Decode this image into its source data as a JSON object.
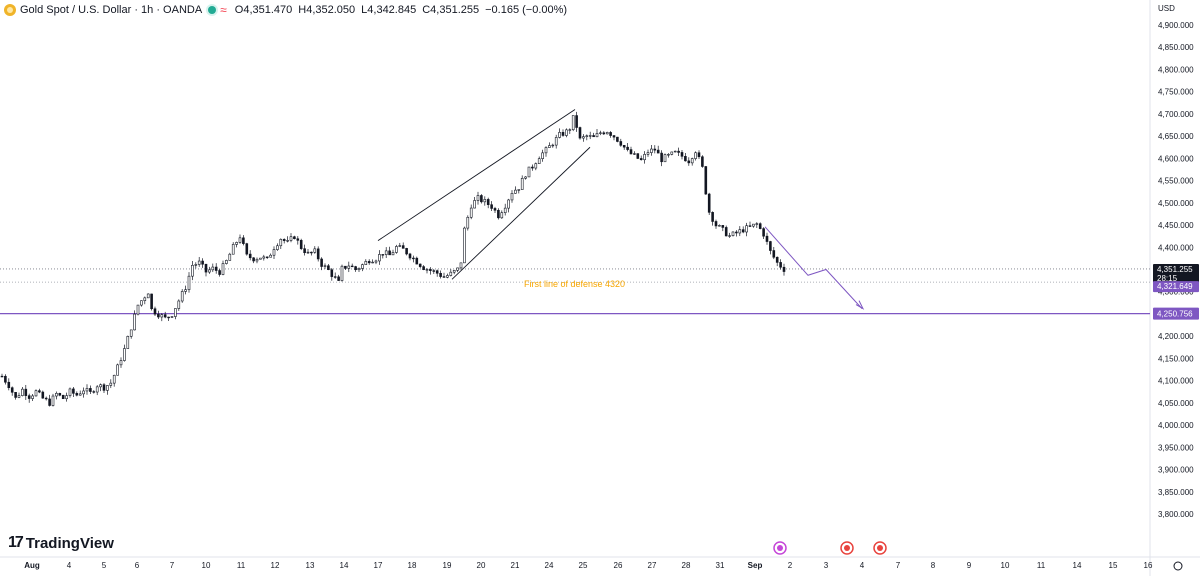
{
  "header": {
    "title": "Gold Spot / U.S. Dollar · 1h · OANDA",
    "status_icon": "market-open-dot",
    "open": "O4,351.470",
    "high": "H4,352.050",
    "low": "L4,342.845",
    "close": "C4,351.255",
    "change": "−0.165 (−0.00%)"
  },
  "branding": {
    "name": "TradingView",
    "logo_mark": "17"
  },
  "currency_label": "USD",
  "colors": {
    "candle": "#131722",
    "accent": "#7e57c2",
    "annotation": "#f7a600",
    "price_badge": "#131722"
  },
  "chart_data": {
    "type": "candlestick",
    "symbol": "Gold Spot / U.S. Dollar",
    "interval": "1h",
    "y_ticks": [
      4900,
      4850,
      4800,
      4750,
      4700,
      4650,
      4600,
      4550,
      4500,
      4450,
      4400,
      4350,
      4300,
      4250,
      4200,
      4150,
      4100,
      4050,
      4000,
      3950,
      3900,
      3850,
      3800
    ],
    "y_tick_labels": [
      "4,900.000",
      "4,850.000",
      "4,800.000",
      "4,750.000",
      "4,700.000",
      "4,650.000",
      "4,600.000",
      "4,550.000",
      "4,500.000",
      "4,450.000",
      "4,400.000",
      "4,350.000",
      "4,300.000",
      "4,250.000",
      "4,200.000",
      "4,150.000",
      "4,100.000",
      "4,050.000",
      "4,000.000",
      "3,950.000",
      "3,900.000",
      "3,850.000",
      "3,800.000"
    ],
    "y_range": [
      3780,
      4920
    ],
    "x_labels": [
      "Aug",
      "4",
      "5",
      "6",
      "7",
      "10",
      "11",
      "12",
      "13",
      "14",
      "17",
      "18",
      "19",
      "20",
      "21",
      "24",
      "25",
      "26",
      "27",
      "28",
      "31",
      "Sep",
      "2",
      "3",
      "4",
      "7",
      "8",
      "9",
      "10",
      "11",
      "14",
      "15",
      "16"
    ],
    "price_path": [
      [
        0,
        4110
      ],
      [
        2,
        4090
      ],
      [
        4,
        4060
      ],
      [
        6,
        4080
      ],
      [
        8,
        4065
      ],
      [
        10,
        4075
      ],
      [
        12,
        4060
      ],
      [
        14,
        4050
      ],
      [
        16,
        4070
      ],
      [
        18,
        4060
      ],
      [
        20,
        4075
      ],
      [
        22,
        4068
      ],
      [
        24,
        4080
      ],
      [
        26,
        4072
      ],
      [
        28,
        4090
      ],
      [
        30,
        4085
      ],
      [
        32,
        4095
      ],
      [
        34,
        4130
      ],
      [
        36,
        4170
      ],
      [
        38,
        4220
      ],
      [
        40,
        4270
      ],
      [
        42,
        4290
      ],
      [
        43,
        4300
      ],
      [
        44,
        4260
      ],
      [
        46,
        4250
      ],
      [
        48,
        4240
      ],
      [
        50,
        4250
      ],
      [
        52,
        4280
      ],
      [
        54,
        4310
      ],
      [
        56,
        4360
      ],
      [
        58,
        4365
      ],
      [
        60,
        4345
      ],
      [
        62,
        4352
      ],
      [
        64,
        4345
      ],
      [
        66,
        4368
      ],
      [
        68,
        4400
      ],
      [
        70,
        4425
      ],
      [
        72,
        4380
      ],
      [
        74,
        4375
      ],
      [
        76,
        4378
      ],
      [
        78,
        4372
      ],
      [
        80,
        4400
      ],
      [
        82,
        4420
      ],
      [
        84,
        4410
      ],
      [
        86,
        4425
      ],
      [
        88,
        4400
      ],
      [
        90,
        4385
      ],
      [
        92,
        4390
      ],
      [
        94,
        4362
      ],
      [
        96,
        4348
      ],
      [
        98,
        4330
      ],
      [
        99,
        4320
      ],
      [
        100,
        4352
      ],
      [
        102,
        4360
      ],
      [
        104,
        4350
      ],
      [
        106,
        4360
      ],
      [
        108,
        4372
      ],
      [
        110,
        4375
      ],
      [
        112,
        4388
      ],
      [
        114,
        4382
      ],
      [
        116,
        4400
      ],
      [
        118,
        4395
      ],
      [
        120,
        4382
      ],
      [
        122,
        4368
      ],
      [
        124,
        4355
      ],
      [
        126,
        4348
      ],
      [
        128,
        4342
      ],
      [
        130,
        4333
      ],
      [
        132,
        4340
      ],
      [
        134,
        4350
      ],
      [
        135,
        4368
      ],
      [
        136,
        4440
      ],
      [
        138,
        4495
      ],
      [
        140,
        4510
      ],
      [
        142,
        4502
      ],
      [
        144,
        4492
      ],
      [
        146,
        4472
      ],
      [
        148,
        4495
      ],
      [
        150,
        4525
      ],
      [
        152,
        4535
      ],
      [
        154,
        4565
      ],
      [
        156,
        4582
      ],
      [
        158,
        4605
      ],
      [
        160,
        4618
      ],
      [
        162,
        4635
      ],
      [
        164,
        4652
      ],
      [
        166,
        4660
      ],
      [
        167,
        4668
      ],
      [
        168,
        4690
      ],
      [
        169,
        4672
      ],
      [
        170,
        4642
      ],
      [
        172,
        4650
      ],
      [
        174,
        4646
      ],
      [
        176,
        4658
      ],
      [
        178,
        4662
      ],
      [
        180,
        4650
      ],
      [
        182,
        4635
      ],
      [
        184,
        4615
      ],
      [
        186,
        4605
      ],
      [
        188,
        4595
      ],
      [
        190,
        4615
      ],
      [
        192,
        4620
      ],
      [
        194,
        4598
      ],
      [
        196,
        4605
      ],
      [
        198,
        4612
      ],
      [
        200,
        4605
      ],
      [
        202,
        4595
      ],
      [
        204,
        4618
      ],
      [
        206,
        4578
      ],
      [
        207,
        4525
      ],
      [
        208,
        4480
      ],
      [
        210,
        4450
      ],
      [
        212,
        4438
      ],
      [
        214,
        4425
      ],
      [
        216,
        4432
      ],
      [
        218,
        4440
      ],
      [
        220,
        4445
      ],
      [
        222,
        4452
      ],
      [
        224,
        4430
      ],
      [
        226,
        4390
      ],
      [
        228,
        4365
      ],
      [
        230,
        4351
      ]
    ],
    "projection_path": [
      [
        4446.0,
        0
      ],
      [
        4337.0,
        1
      ],
      [
        4350.0,
        2
      ],
      [
        4262.0,
        3
      ]
    ],
    "channel_upper": [
      [
        4415,
        "17"
      ],
      [
        4710,
        "24.8"
      ]
    ],
    "channel_lower": [
      [
        4328,
        "19.2"
      ],
      [
        4625,
        "25"
      ]
    ],
    "horizontal_levels": [
      {
        "value": 4351.255,
        "label": "4,351.255",
        "sublabel": "28:15",
        "style": "dotted"
      },
      {
        "value": 4321.649,
        "label": "4,321.649",
        "style": "dotted"
      },
      {
        "value": 4250.756,
        "label": "4,250.756",
        "style": "solid"
      }
    ],
    "annotations": [
      {
        "text": "First line of defense 4320",
        "value": 4320
      }
    ]
  }
}
